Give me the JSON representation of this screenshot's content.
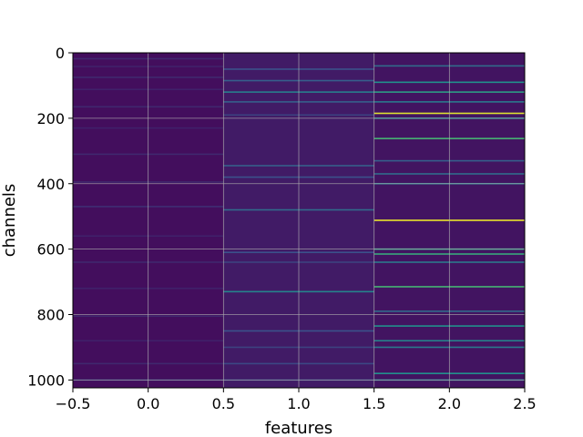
{
  "chart_data": {
    "type": "heatmap",
    "title": "",
    "xlabel": "features",
    "ylabel": "channels",
    "xlim": [
      -0.5,
      2.5
    ],
    "ylim": [
      1024,
      0
    ],
    "y_inverted": true,
    "x_ticks": [
      -0.5,
      0.0,
      0.5,
      1.0,
      1.5,
      2.0,
      2.5
    ],
    "x_tick_labels": [
      "−0.5",
      "0.0",
      "0.5",
      "1.0",
      "1.5",
      "2.0",
      "2.5"
    ],
    "y_ticks": [
      0,
      200,
      400,
      600,
      800,
      1000
    ],
    "y_tick_labels": [
      "0",
      "200",
      "400",
      "600",
      "800",
      "1000"
    ],
    "grid": true,
    "colormap": "viridis",
    "n_channels": 1024,
    "columns": [
      {
        "feature": 0,
        "base_value": 0.04,
        "highlights": [
          {
            "channel": 18,
            "value": 0.12
          },
          {
            "channel": 42,
            "value": 0.1
          },
          {
            "channel": 75,
            "value": 0.12
          },
          {
            "channel": 112,
            "value": 0.1
          },
          {
            "channel": 165,
            "value": 0.12
          },
          {
            "channel": 230,
            "value": 0.1
          },
          {
            "channel": 310,
            "value": 0.12
          },
          {
            "channel": 395,
            "value": 0.12
          },
          {
            "channel": 470,
            "value": 0.14
          },
          {
            "channel": 560,
            "value": 0.1
          },
          {
            "channel": 640,
            "value": 0.12
          },
          {
            "channel": 720,
            "value": 0.1
          },
          {
            "channel": 805,
            "value": 0.12
          },
          {
            "channel": 880,
            "value": 0.1
          },
          {
            "channel": 950,
            "value": 0.12
          },
          {
            "channel": 1000,
            "value": 0.16
          }
        ]
      },
      {
        "feature": 1,
        "base_value": 0.08,
        "highlights": [
          {
            "channel": 50,
            "value": 0.25
          },
          {
            "channel": 85,
            "value": 0.3
          },
          {
            "channel": 120,
            "value": 0.42
          },
          {
            "channel": 150,
            "value": 0.3
          },
          {
            "channel": 190,
            "value": 0.2
          },
          {
            "channel": 345,
            "value": 0.3
          },
          {
            "channel": 380,
            "value": 0.25
          },
          {
            "channel": 480,
            "value": 0.35
          },
          {
            "channel": 610,
            "value": 0.25
          },
          {
            "channel": 640,
            "value": 0.2
          },
          {
            "channel": 730,
            "value": 0.45
          },
          {
            "channel": 850,
            "value": 0.25
          },
          {
            "channel": 900,
            "value": 0.2
          },
          {
            "channel": 950,
            "value": 0.22
          },
          {
            "channel": 1000,
            "value": 0.2
          }
        ]
      },
      {
        "feature": 2,
        "base_value": 0.06,
        "highlights": [
          {
            "channel": 40,
            "value": 0.35
          },
          {
            "channel": 90,
            "value": 0.5
          },
          {
            "channel": 120,
            "value": 0.55
          },
          {
            "channel": 150,
            "value": 0.4
          },
          {
            "channel": 185,
            "value": 0.95
          },
          {
            "channel": 200,
            "value": 0.45
          },
          {
            "channel": 262,
            "value": 0.65
          },
          {
            "channel": 330,
            "value": 0.3
          },
          {
            "channel": 370,
            "value": 0.35
          },
          {
            "channel": 400,
            "value": 0.4
          },
          {
            "channel": 512,
            "value": 0.97
          },
          {
            "channel": 600,
            "value": 0.55
          },
          {
            "channel": 615,
            "value": 0.6
          },
          {
            "channel": 640,
            "value": 0.4
          },
          {
            "channel": 715,
            "value": 0.65
          },
          {
            "channel": 790,
            "value": 0.35
          },
          {
            "channel": 835,
            "value": 0.5
          },
          {
            "channel": 880,
            "value": 0.45
          },
          {
            "channel": 900,
            "value": 0.4
          },
          {
            "channel": 980,
            "value": 0.5
          },
          {
            "channel": 1000,
            "value": 0.4
          }
        ]
      }
    ]
  }
}
